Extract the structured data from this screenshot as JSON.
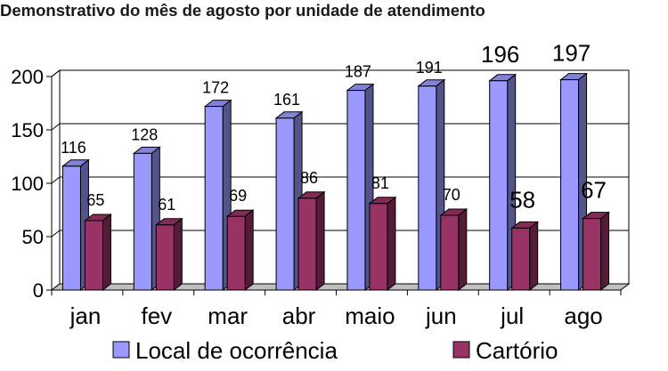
{
  "chart_data": {
    "type": "bar",
    "title": "Demonstrativo do mês de agosto por unidade de atendimento",
    "categories": [
      "jan",
      "fev",
      "mar",
      "abr",
      "maio",
      "jun",
      "jul",
      "ago"
    ],
    "series": [
      {
        "name": "Local de ocorrência",
        "color": "#9999ff",
        "values": [
          116,
          128,
          172,
          161,
          187,
          191,
          196,
          197
        ],
        "value_labels": [
          "116",
          "128",
          "172",
          "161",
          "187",
          "191",
          "196",
          "197"
        ]
      },
      {
        "name": "Cartório",
        "color": "#993366",
        "values": [
          65,
          61,
          69,
          86,
          81,
          70,
          58,
          67
        ],
        "value_labels": [
          "65",
          "61",
          "69",
          "86",
          "81",
          "70",
          "58",
          "67"
        ]
      }
    ],
    "yticks": [
      "0",
      "50",
      "100",
      "150",
      "200"
    ],
    "ylim": [
      0,
      200
    ],
    "grid": true,
    "legend": "bottom",
    "xlabel": "",
    "ylabel": ""
  }
}
